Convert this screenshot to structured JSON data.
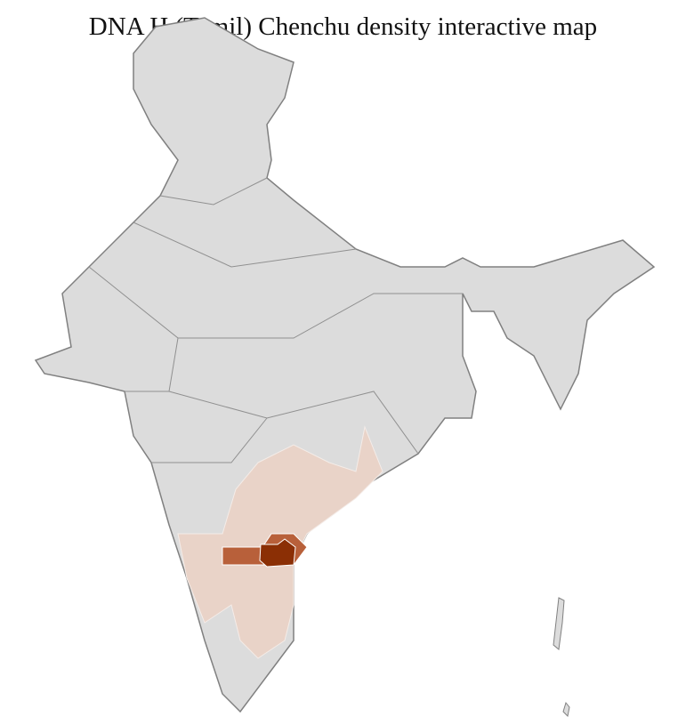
{
  "title": "DNA H (Tamil) Chenchu density interactive map",
  "colors": {
    "no_data": "#dcdcdc",
    "low": "#e9d3c8",
    "medium": "#b8603a",
    "high": "#8b2f05",
    "border": "#808080",
    "district_lines": "#ffffff"
  }
}
